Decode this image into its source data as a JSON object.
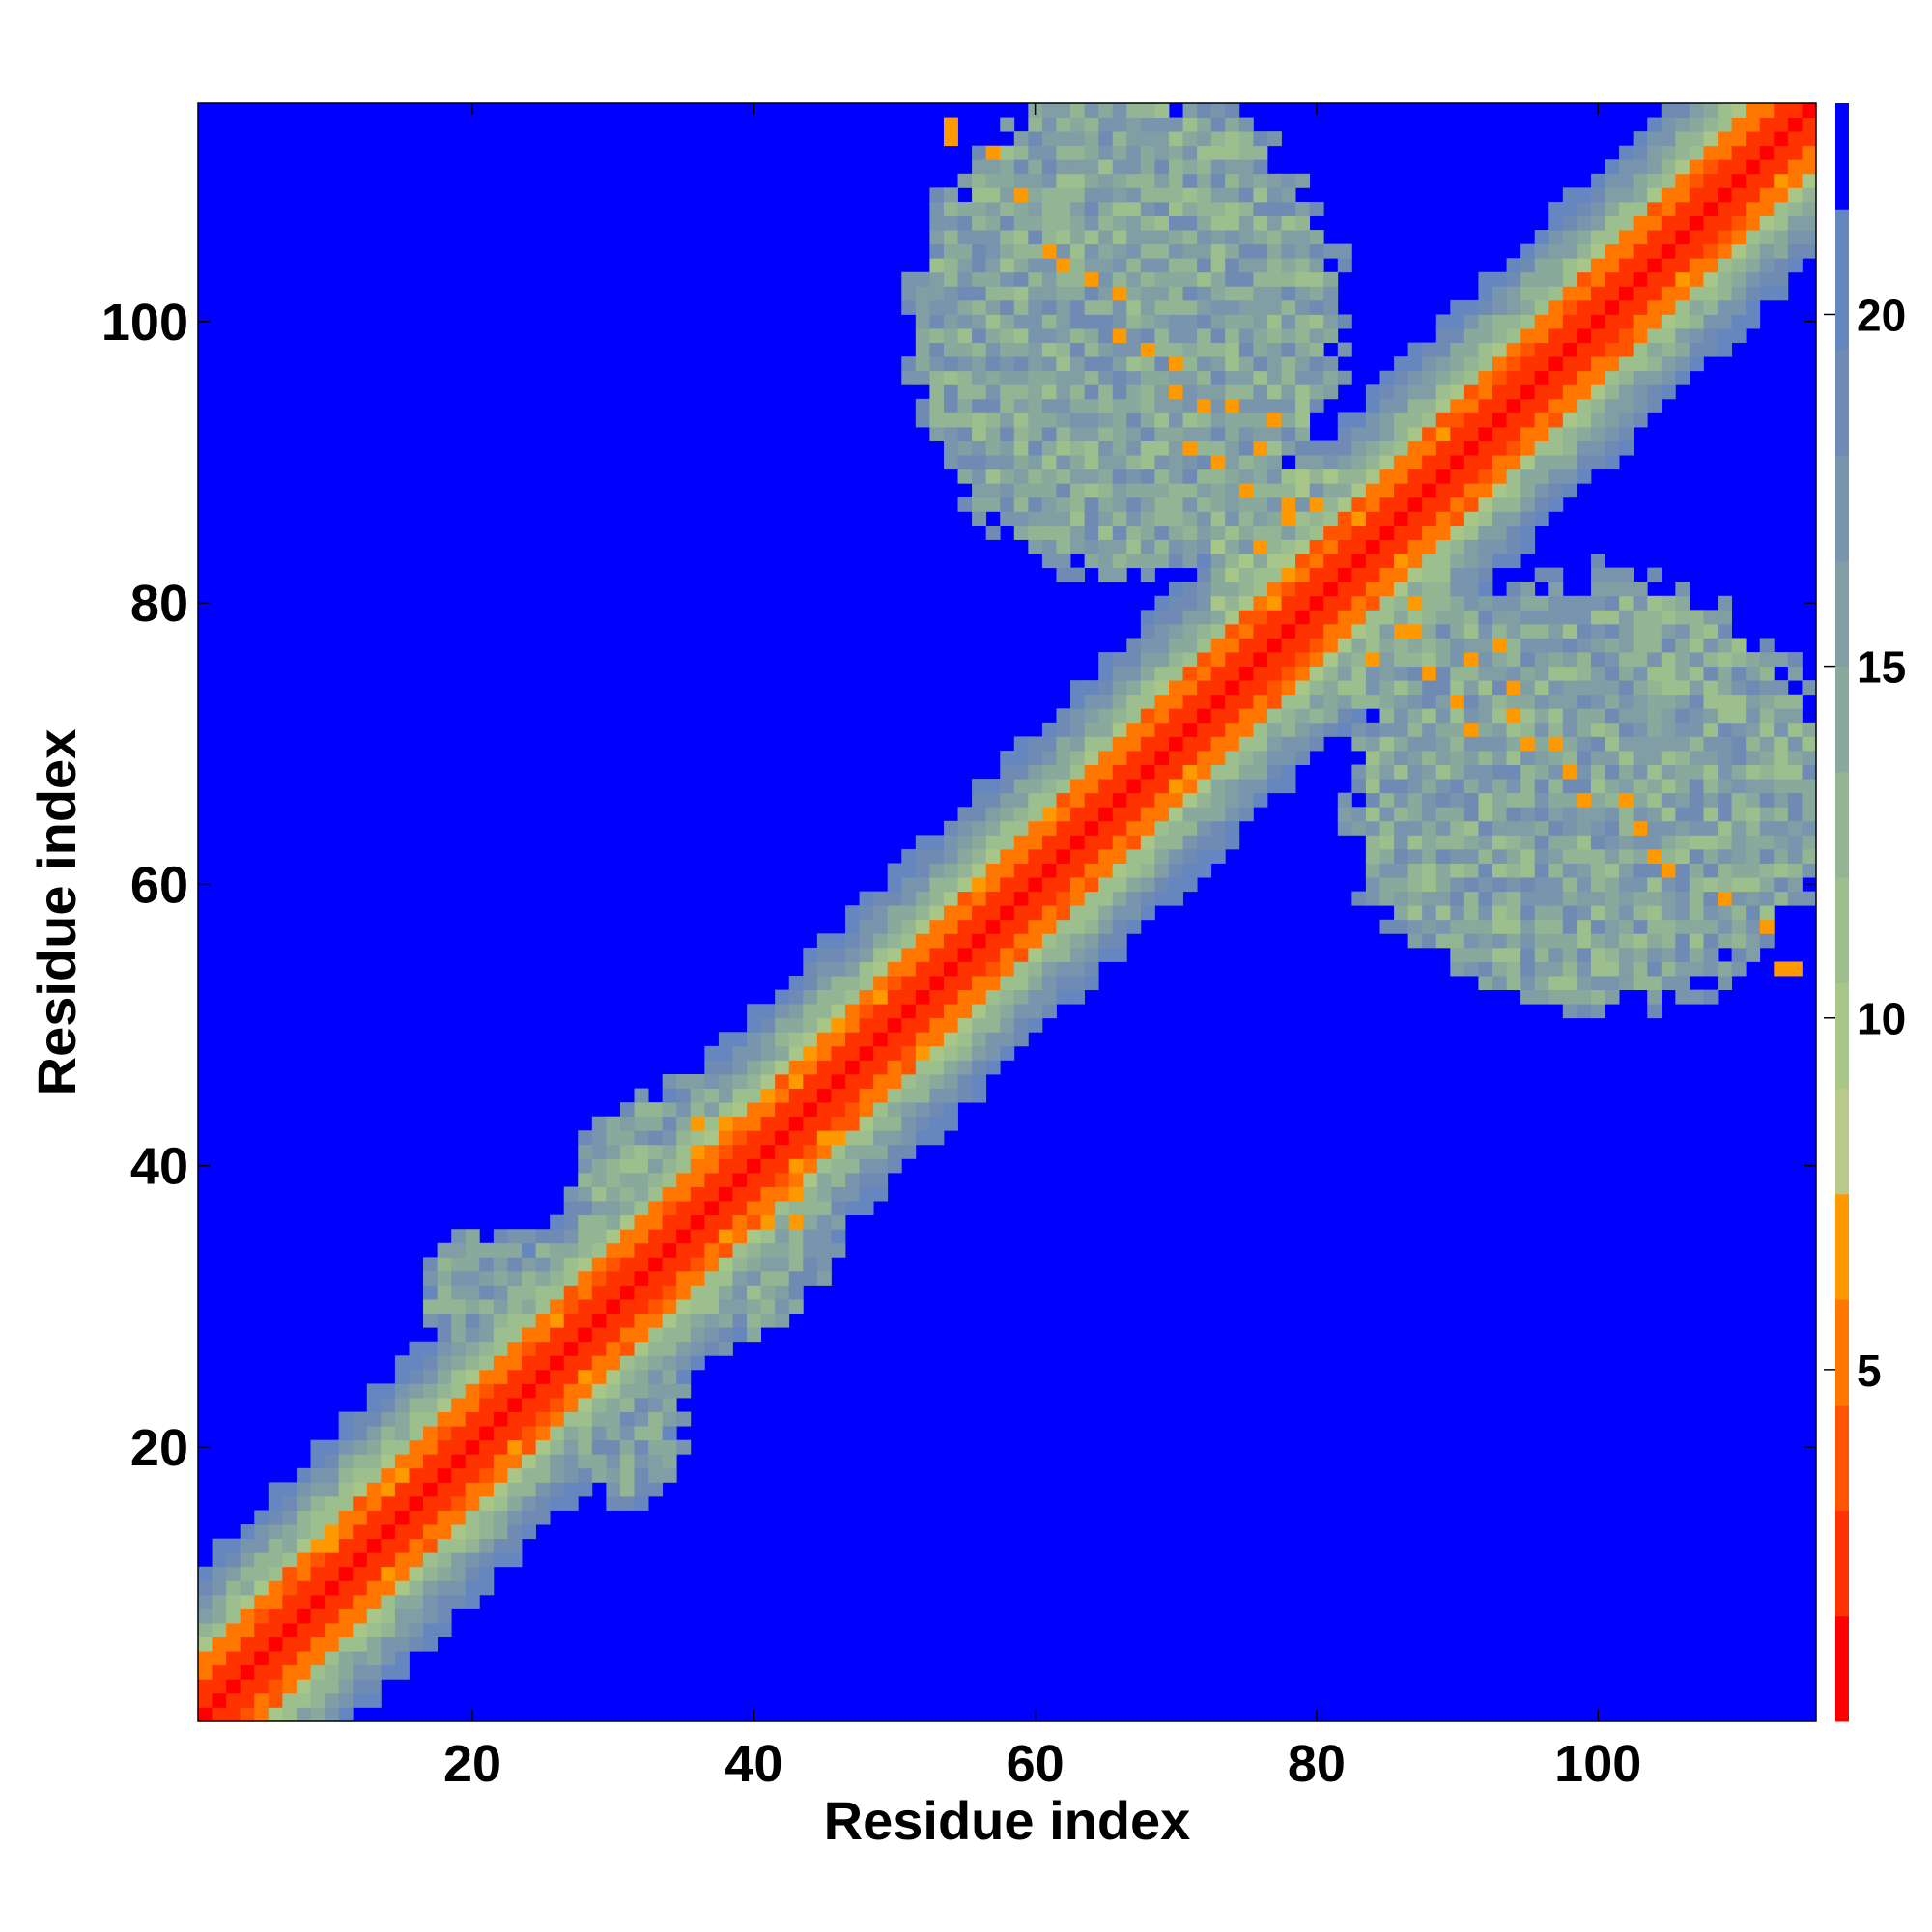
{
  "chart_data": {
    "type": "heatmap",
    "title": "",
    "xlabel": "Residue index",
    "ylabel": "Residue index",
    "n_residues": 115,
    "xlim": [
      0.5,
      115.5
    ],
    "ylim": [
      0.5,
      115.5
    ],
    "x_ticks": [
      20,
      40,
      60,
      80,
      100
    ],
    "y_ticks": [
      20,
      40,
      60,
      80,
      100
    ],
    "colorbar": {
      "ticks": [
        5,
        10,
        15,
        20
      ],
      "range": [
        0,
        23
      ],
      "levels": [
        {
          "max": 1.5,
          "color": "#ff0000"
        },
        {
          "max": 3.0,
          "color": "#ff3300"
        },
        {
          "max": 4.5,
          "color": "#ff5500"
        },
        {
          "max": 6.0,
          "color": "#ff7700"
        },
        {
          "max": 7.5,
          "color": "#ff9900"
        },
        {
          "max": 9.0,
          "color": "#b8c98a"
        },
        {
          "max": 10.5,
          "color": "#a8c688"
        },
        {
          "max": 12.0,
          "color": "#9dbf8e"
        },
        {
          "max": 13.5,
          "color": "#93b594"
        },
        {
          "max": 15.0,
          "color": "#88a99b"
        },
        {
          "max": 16.5,
          "color": "#809ea4"
        },
        {
          "max": 18.0,
          "color": "#7895ad"
        },
        {
          "max": 19.5,
          "color": "#6f8bb4"
        },
        {
          "max": 21.5,
          "color": "#6686bf"
        },
        {
          "max": 23.0,
          "color": "#0000ff"
        }
      ]
    },
    "background_color": "#0000ff",
    "structure": {
      "diagonal_band_halfwidth": 11,
      "off_diagonal_lobes": [
        {
          "i_range": [
            53,
            80
          ],
          "j_range": [
            84,
            115
          ],
          "typical_distance": 14
        },
        {
          "i_range": [
            28,
            47
          ],
          "j_range": [
            22,
            38
          ],
          "typical_distance": 13
        }
      ],
      "close_contacts": [
        [
          54,
          114
        ],
        [
          57,
          112
        ],
        [
          61,
          105
        ],
        [
          64,
          103
        ],
        [
          66,
          99
        ],
        [
          68,
          98
        ],
        [
          70,
          95
        ],
        [
          74,
          94
        ],
        [
          77,
          93
        ],
        [
          76,
          91
        ],
        [
          78,
          87
        ],
        [
          80,
          87
        ],
        [
          81,
          84
        ],
        [
          84,
          76
        ],
        [
          86,
          78
        ],
        [
          88,
          75
        ],
        [
          90,
          73
        ],
        [
          91,
          71
        ],
        [
          94,
          72
        ],
        [
          97,
          70
        ],
        [
          99,
          66
        ],
        [
          102,
          66
        ],
        [
          104,
          62
        ],
        [
          109,
          59
        ],
        [
          112,
          57
        ],
        [
          113,
          54
        ],
        [
          30,
          33
        ],
        [
          33,
          35
        ],
        [
          36,
          43
        ],
        [
          38,
          40
        ],
        [
          41,
          37
        ],
        [
          43,
          38
        ],
        [
          41,
          36
        ]
      ]
    }
  }
}
